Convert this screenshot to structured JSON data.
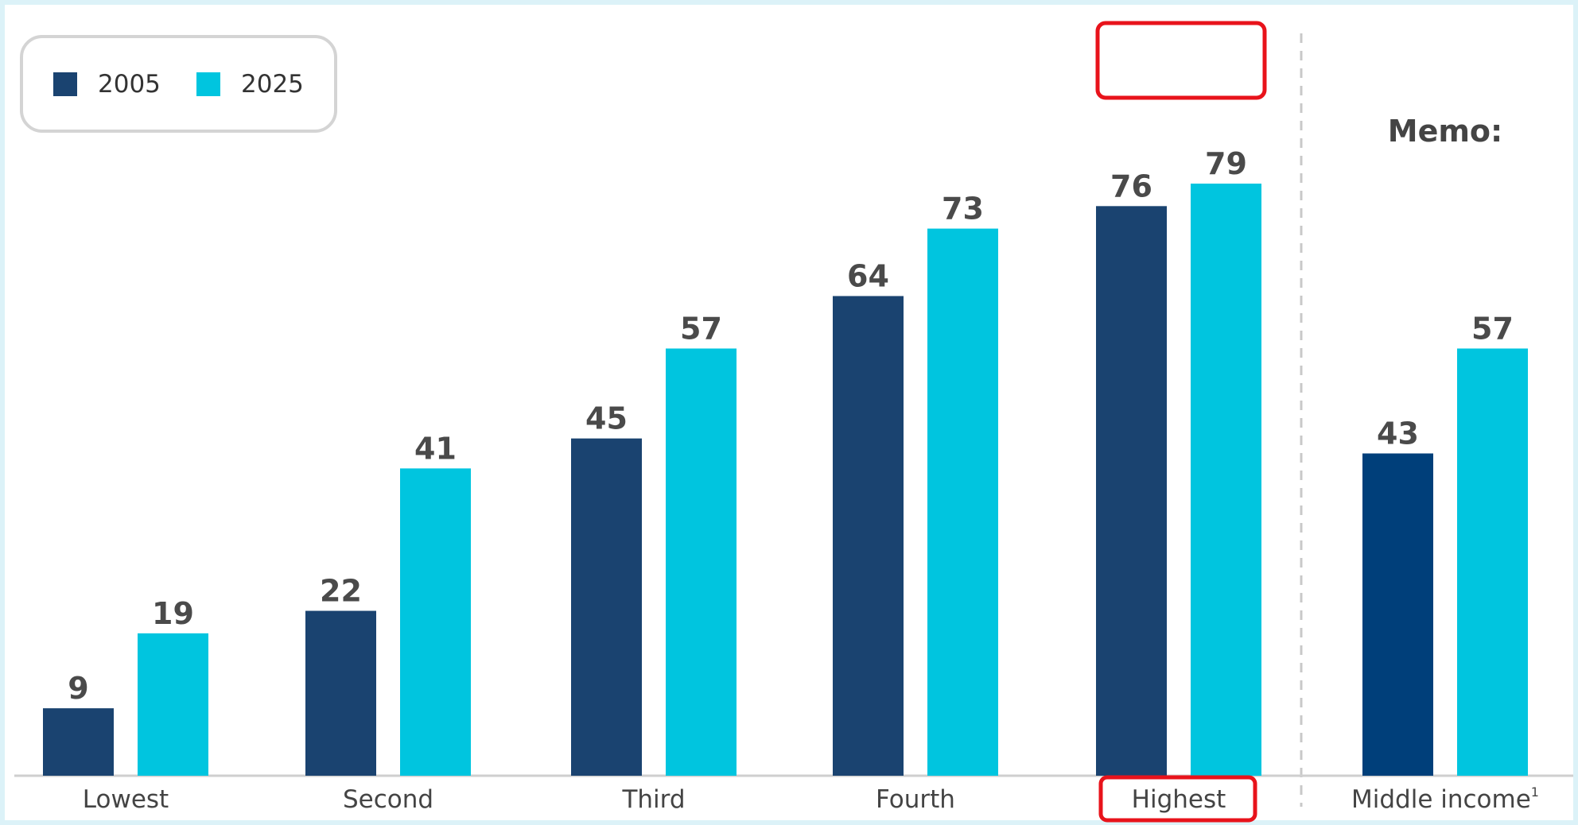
{
  "chart_data": {
    "type": "bar",
    "categories": [
      "Lowest",
      "Second",
      "Third",
      "Fourth",
      "Highest",
      "Middle income"
    ],
    "series": [
      {
        "name": "2005",
        "values": [
          9,
          22,
          45,
          64,
          76,
          43
        ]
      },
      {
        "name": "2025",
        "values": [
          19,
          41,
          57,
          73,
          79,
          57
        ]
      }
    ],
    "memo_label": "Memo:",
    "memo_category_index": 5,
    "middle_income_footnote": "1",
    "highlighted_category": "Highest",
    "ylim": [
      0,
      100
    ],
    "grid": false,
    "legend_position": "top-left",
    "colors": {
      "s2005": "#1a4370",
      "s2005_memo": "#003f7a",
      "s2025": "#00c5df",
      "highlight": "#e8131b",
      "frame": "#dcf2f8",
      "divider": "#c8c8c8",
      "axis": "#cfcfcf"
    }
  }
}
